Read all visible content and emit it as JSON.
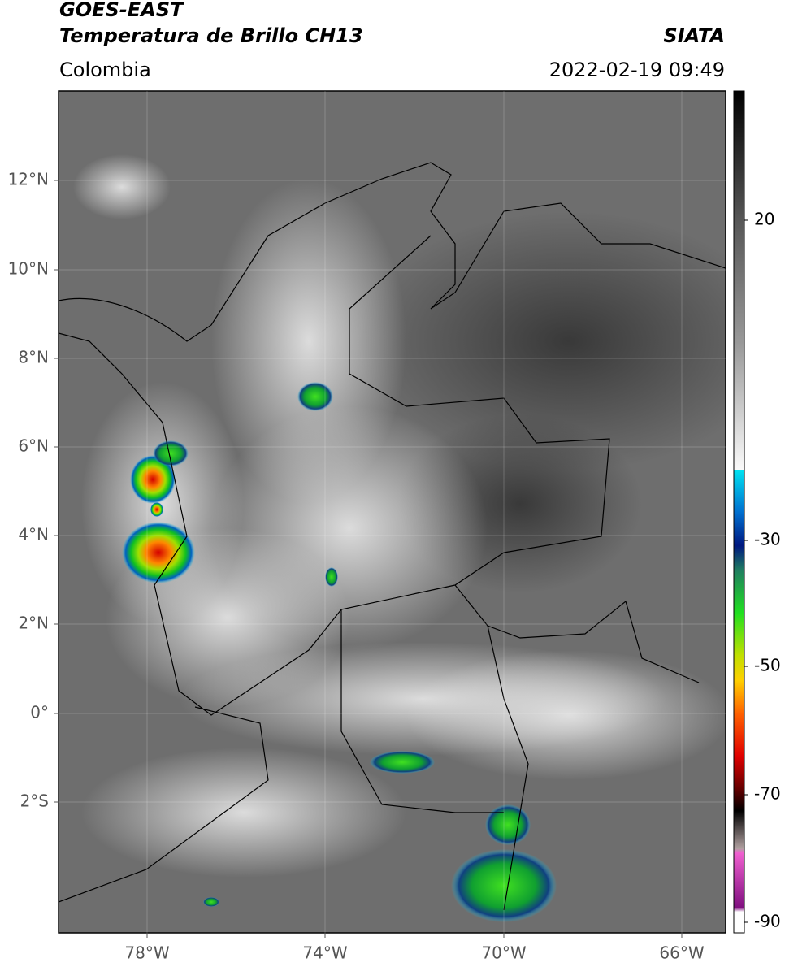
{
  "header": {
    "satellite": "GOES-EAST",
    "product": "Temperatura de Brillo CH13",
    "source": "SIATA",
    "region": "Colombia",
    "datetime": "2022-02-19 09:49"
  },
  "map": {
    "lat_labels": [
      "12°N",
      "10°N",
      "8°N",
      "6°N",
      "4°N",
      "2°N",
      "0°",
      "2°S"
    ],
    "lon_labels": [
      "78°W",
      "74°W",
      "70°W",
      "66°W"
    ]
  },
  "colorbar": {
    "labels": [
      "20",
      "-30",
      "-50",
      "-70",
      "-90"
    ]
  }
}
